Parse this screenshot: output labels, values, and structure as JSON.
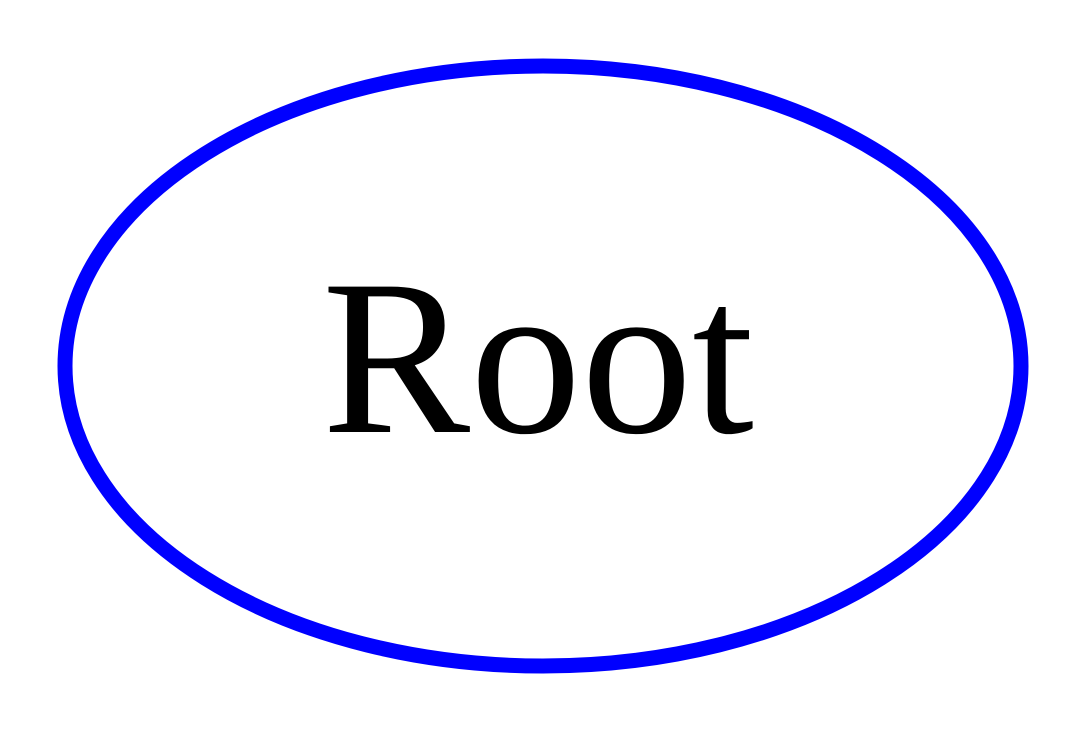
{
  "diagram": {
    "nodes": [
      {
        "id": "root",
        "label": "Root",
        "shape": "ellipse",
        "border_color": "#0000ff",
        "fill_color": "#ffffff",
        "text_color": "#000000"
      }
    ]
  }
}
